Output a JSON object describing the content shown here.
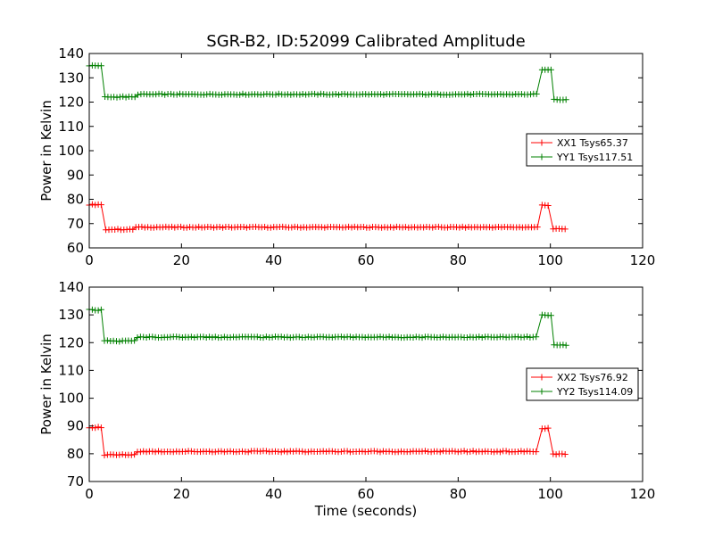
{
  "title": "SGR-B2, ID:52099 Calibrated Amplitude",
  "xlabel": "Time (seconds)",
  "chart_data": [
    {
      "type": "line",
      "ylabel": "Power in Kelvin",
      "xlim": [
        0,
        120
      ],
      "ylim": [
        60,
        140
      ],
      "xticks": [
        0,
        20,
        40,
        60,
        80,
        100,
        120
      ],
      "yticks": [
        60,
        70,
        80,
        90,
        100,
        110,
        120,
        130,
        140
      ],
      "legend_position": "center-right",
      "grid": false,
      "series": [
        {
          "name": "XX1 Tsys65.37",
          "color": "#ff0000",
          "marker": "plus",
          "segments": [
            {
              "x": [
                0,
                3
              ],
              "y": 77.8
            },
            {
              "x": [
                3.6,
                97.5
              ],
              "y": 68.0
            },
            {
              "x": [
                98.2,
                100
              ],
              "y": 77.5
            },
            {
              "x": [
                100.6,
                103.8
              ],
              "y": 67.8
            }
          ],
          "sections": [
            {
              "x": [
                10,
                97.5
              ],
              "y": 68.5
            }
          ]
        },
        {
          "name": "YY1 Tsys117.51",
          "color": "#008000",
          "marker": "plus",
          "segments": [
            {
              "x": [
                0,
                2.7
              ],
              "y": 135.0
            },
            {
              "x": [
                3.4,
                97.5
              ],
              "y": 122.5
            },
            {
              "x": [
                98.2,
                100.2
              ],
              "y": 133.2
            },
            {
              "x": [
                100.8,
                103.8
              ],
              "y": 121.0
            }
          ],
          "sections": [
            {
              "x": [
                10,
                97.5
              ],
              "y": 123.2
            }
          ]
        }
      ]
    },
    {
      "type": "line",
      "ylabel": "Power in Kelvin",
      "xlabel": "Time (seconds)",
      "xlim": [
        0,
        120
      ],
      "ylim": [
        70,
        140
      ],
      "xticks": [
        0,
        20,
        40,
        60,
        80,
        100,
        120
      ],
      "yticks": [
        70,
        80,
        90,
        100,
        110,
        120,
        130,
        140
      ],
      "legend_position": "center-right",
      "grid": false,
      "series": [
        {
          "name": "XX2 Tsys76.92",
          "color": "#ff0000",
          "marker": "plus",
          "segments": [
            {
              "x": [
                0,
                2.7
              ],
              "y": 89.5
            },
            {
              "x": [
                3.3,
                97.5
              ],
              "y": 80.0
            },
            {
              "x": [
                98.2,
                100
              ],
              "y": 89.2
            },
            {
              "x": [
                100.6,
                103.8
              ],
              "y": 79.8
            }
          ],
          "sections": [
            {
              "x": [
                10,
                97.5
              ],
              "y": 80.8
            }
          ]
        },
        {
          "name": "YY2 Tsys114.09",
          "color": "#008000",
          "marker": "plus",
          "segments": [
            {
              "x": [
                0,
                2.7
              ],
              "y": 131.8
            },
            {
              "x": [
                3.3,
                97.5
              ],
              "y": 121.0
            },
            {
              "x": [
                98.2,
                100.2
              ],
              "y": 130.0
            },
            {
              "x": [
                100.8,
                103.8
              ],
              "y": 119.2
            }
          ],
          "sections": [
            {
              "x": [
                10,
                97.5
              ],
              "y": 122.0
            }
          ]
        }
      ]
    }
  ]
}
